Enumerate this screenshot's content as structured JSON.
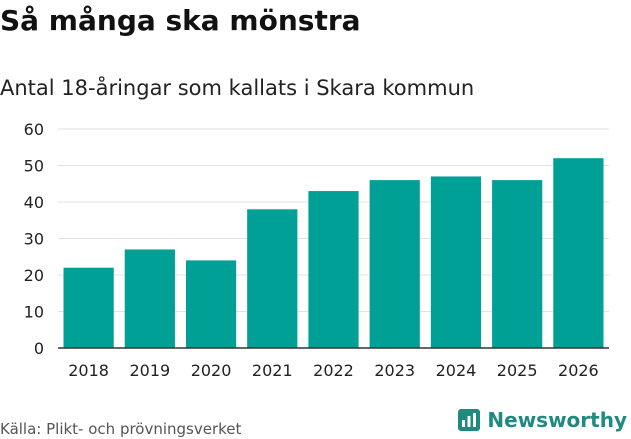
{
  "colors": {
    "bar": "#00a096",
    "grid": "#e2e2e2",
    "axis": "#333333",
    "brand": "#1f8a80"
  },
  "source": "Källa: Plikt- och prövningsverket",
  "brand": {
    "name": "Newsworthy",
    "icon": "bar-chart-logo-icon"
  },
  "chart_data": {
    "type": "bar",
    "title": "Så många ska mönstra",
    "subtitle": "Antal 18-åringar som kallats i Skara kommun",
    "xlabel": "",
    "ylabel": "",
    "categories": [
      "2018",
      "2019",
      "2020",
      "2021",
      "2022",
      "2023",
      "2024",
      "2025",
      "2026"
    ],
    "values": [
      22,
      27,
      24,
      38,
      43,
      46,
      47,
      46,
      52
    ],
    "ylim": [
      0,
      60
    ],
    "yticks": [
      0,
      10,
      20,
      30,
      40,
      50,
      60
    ],
    "grid": true,
    "legend": "none"
  }
}
